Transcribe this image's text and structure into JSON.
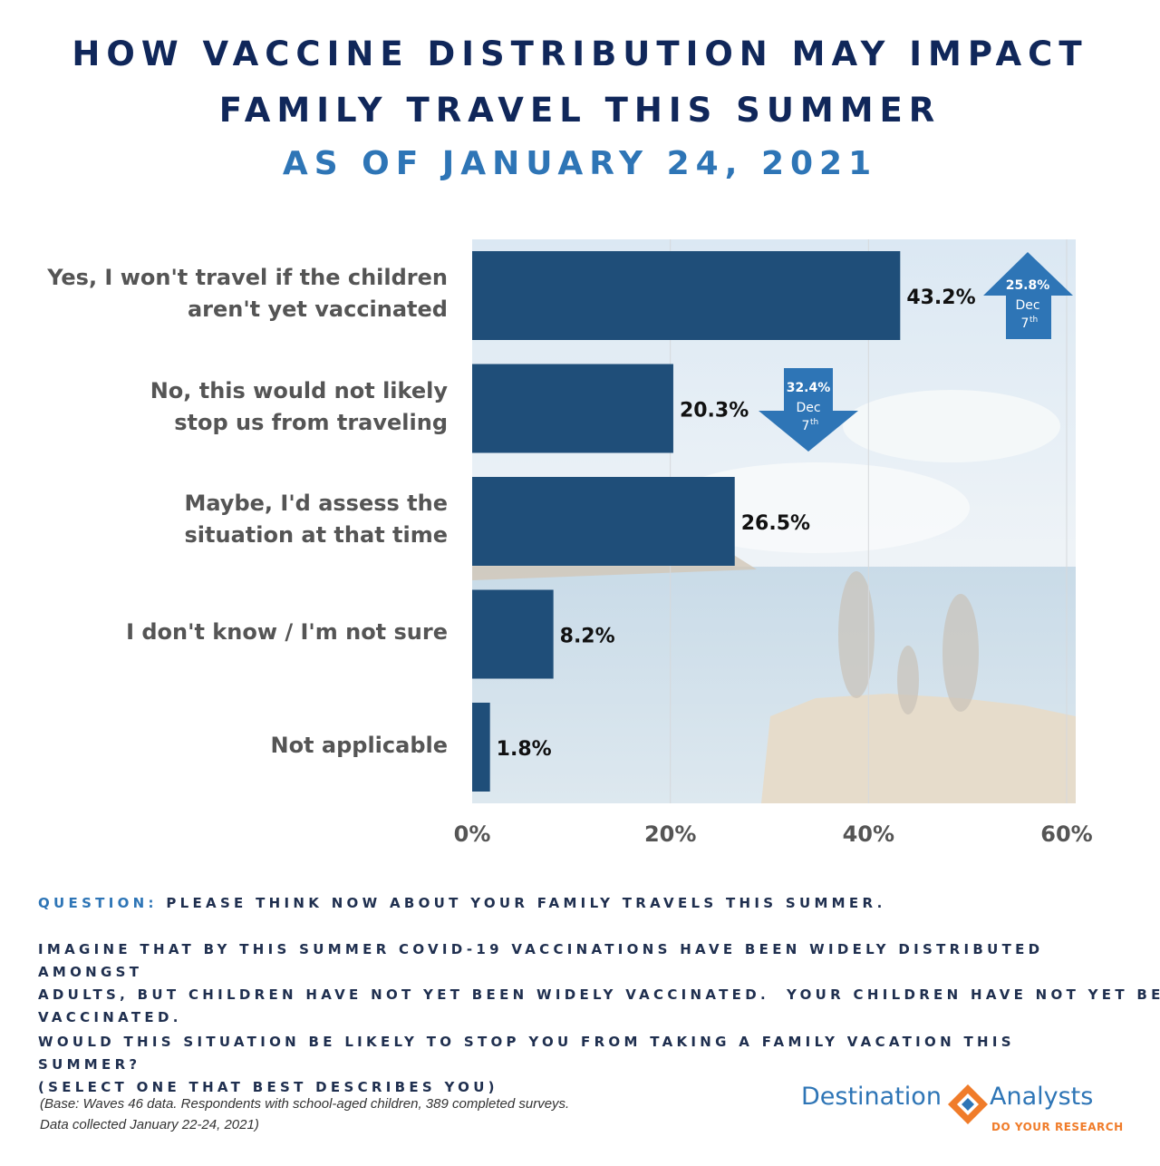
{
  "title": {
    "line1": "HOW VACCINE DISTRIBUTION MAY IMPACT",
    "line2": "FAMILY TRAVEL THIS SUMMER",
    "line3": "AS OF JANUARY 24, 2021"
  },
  "chart_data": {
    "type": "bar",
    "orientation": "horizontal",
    "categories": [
      [
        "Yes, I won't travel if the children",
        "aren't yet vaccinated"
      ],
      [
        "No, this would not likely",
        "stop us from traveling"
      ],
      [
        "Maybe, I'd assess the",
        "situation at that time"
      ],
      [
        "I don't know / I'm not sure"
      ],
      [
        "Not applicable"
      ]
    ],
    "values": [
      43.2,
      20.3,
      26.5,
      8.2,
      1.8
    ],
    "value_labels": [
      "43.2%",
      "20.3%",
      "26.5%",
      "8.2%",
      "1.8%"
    ],
    "xlim": [
      0,
      60
    ],
    "xticks": [
      "0%",
      "20%",
      "40%",
      "60%"
    ],
    "grid": true,
    "bar_color": "#1f4e79",
    "annotations": [
      {
        "category_index": 0,
        "direction": "up",
        "value": "25.8%",
        "line2": "Dec",
        "line3": "7",
        "sup": "th"
      },
      {
        "category_index": 1,
        "direction": "down",
        "value": "32.4%",
        "line2": "Dec",
        "line3": "7",
        "sup": "th"
      }
    ]
  },
  "question": {
    "prefix": "QUESTION:",
    "p1": "PLEASE THINK NOW ABOUT YOUR FAMILY TRAVELS THIS SUMMER.",
    "p2_lines": [
      "IMAGINE THAT BY THIS SUMMER COVID-19 VACCINATIONS HAVE BEEN WIDELY DISTRIBUTED AMONGST",
      "ADULTS, BUT CHILDREN HAVE NOT YET BEEN WIDELY VACCINATED.  YOUR CHILDREN HAVE NOT YET BEEN",
      "VACCINATED."
    ],
    "p3_lines": [
      "WOULD THIS SITUATION BE LIKELY TO STOP YOU FROM TAKING A FAMILY VACATION THIS SUMMER?",
      "(SELECT ONE THAT BEST DESCRIBES YOU)"
    ]
  },
  "base_note": {
    "line1": "(Base: Waves 46 data. Respondents with school-aged children, 389 completed surveys.",
    "line2": "Data collected January 22-24, 2021)"
  },
  "logo": {
    "left": "Destination",
    "right": "Analysts",
    "tagline": "DO YOUR RESEARCH",
    "colors": {
      "blue": "#2e75b6",
      "orange": "#f07c2a"
    }
  },
  "colors": {
    "title_dark": "#10275a",
    "title_light": "#2e75b6",
    "arrow": "#2e75b6"
  }
}
